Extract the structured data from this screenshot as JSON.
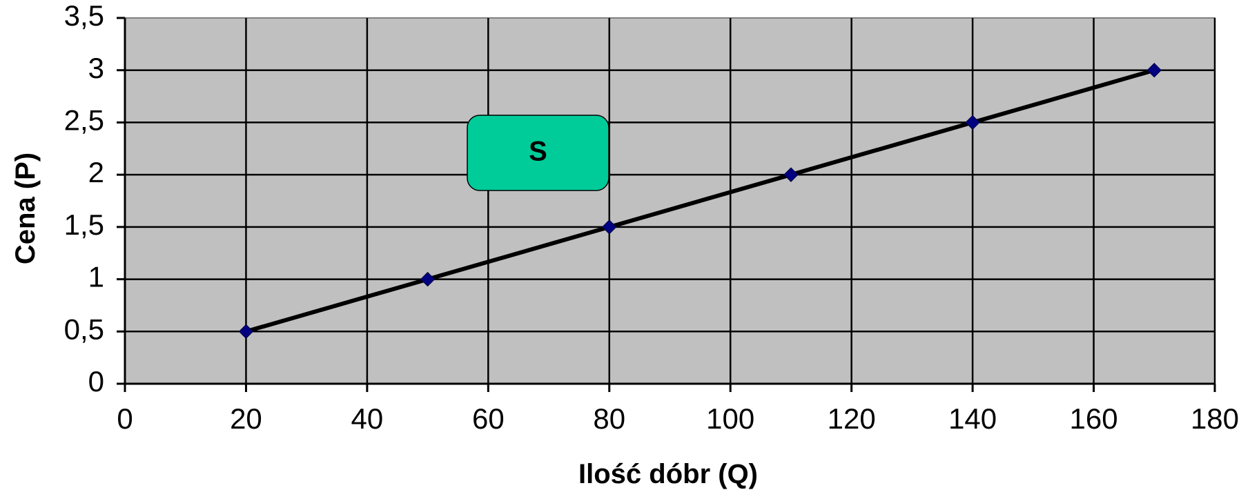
{
  "chart_data": {
    "type": "line",
    "x": [
      20,
      50,
      80,
      110,
      140,
      170
    ],
    "series": [
      {
        "values": [
          0.5,
          1,
          1.5,
          2,
          2.5,
          3
        ]
      }
    ],
    "xlabel": "Ilość dóbr (Q)",
    "ylabel": "Cena (P)",
    "xlim": [
      0,
      180
    ],
    "ylim": [
      0,
      3.5
    ],
    "xticks": [
      0,
      20,
      40,
      60,
      80,
      100,
      120,
      140,
      160,
      180
    ],
    "xtick_labels": [
      "0",
      "20",
      "40",
      "60",
      "80",
      "100",
      "120",
      "140",
      "160",
      "180"
    ],
    "yticks": [
      0,
      0.5,
      1,
      1.5,
      2,
      2.5,
      3,
      3.5
    ],
    "ytick_labels": [
      "0",
      "0,5",
      "1",
      "1,5",
      "2",
      "2,5",
      "3",
      "3,5"
    ],
    "grid": true,
    "colors": {
      "plot_background": "#c0c0c0",
      "line": "#000000",
      "marker": "#000080",
      "annotation_fill": "#00cc99"
    },
    "annotation": {
      "text": "S"
    }
  }
}
